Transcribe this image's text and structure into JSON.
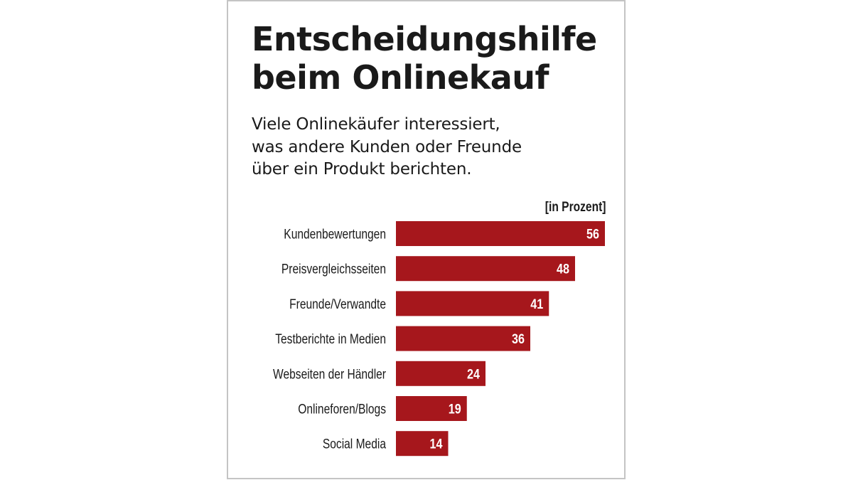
{
  "header": {
    "title_line1": "Entscheidungshilfe",
    "title_line2": "beim Onlinekauf",
    "subtitle_line1": "Viele Onlinekäufer interessiert,",
    "subtitle_line2": "was andere Kunden oder Freunde",
    "subtitle_line3": "über ein Produkt berichten."
  },
  "chart_data": {
    "type": "bar",
    "orientation": "horizontal",
    "title": "Entscheidungshilfe beim Onlinekauf",
    "subtitle": "Viele Onlinekäufer interessiert, was andere Kunden oder Freunde über ein Produkt berichten.",
    "unit_label": "[in Prozent]",
    "xlabel": "",
    "ylabel": "",
    "categories": [
      "Kundenbewertungen",
      "Preisvergleichsseiten",
      "Freunde/Verwandte",
      "Testberichte in Medien",
      "Webseiten der Händler",
      "Onlineforen/Blogs",
      "Social Media"
    ],
    "values": [
      56,
      48,
      41,
      36,
      24,
      19,
      14
    ],
    "xlim": [
      0,
      56
    ],
    "grid": false,
    "legend": "none",
    "data_labels": "inside-end",
    "colors": {
      "bar": "#a6171c",
      "value_text": "#ffffff",
      "label_text": "#1a1a1a",
      "frame": "#c4c4c4"
    }
  }
}
